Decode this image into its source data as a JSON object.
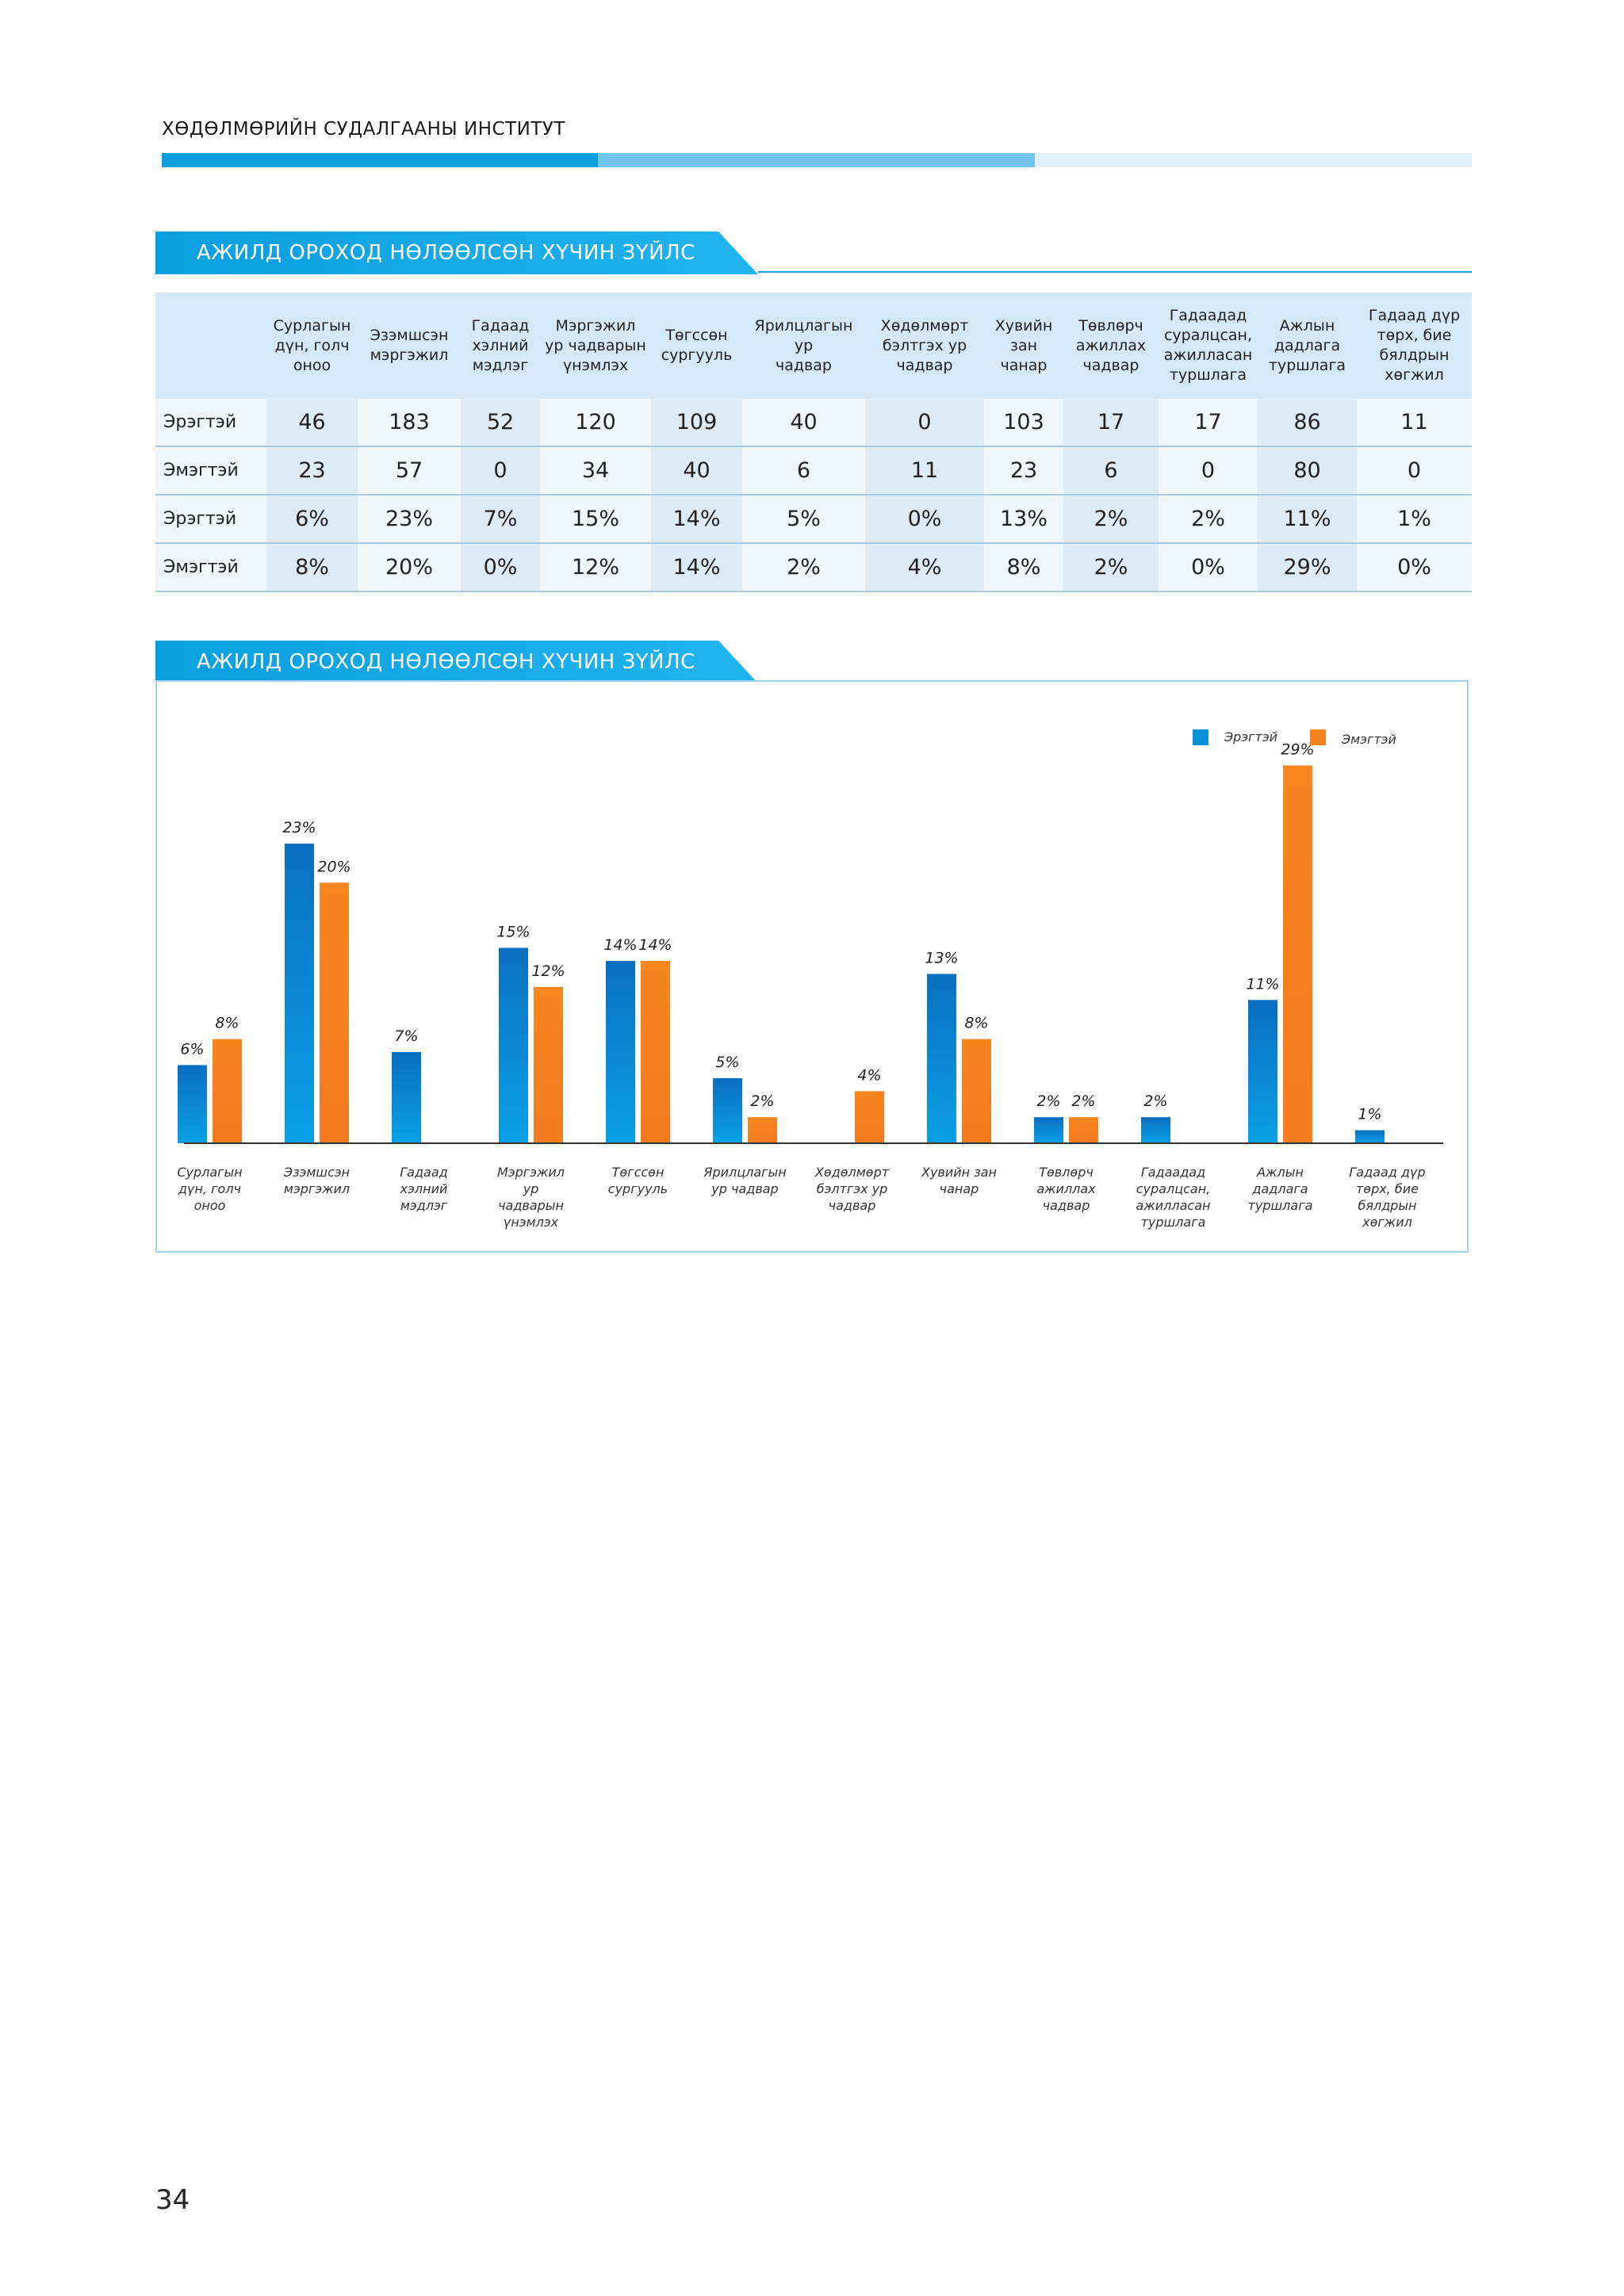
{
  "header": {
    "institute": "ХӨДӨЛМӨРИЙН СУДАЛГААНЫ ИНСТИТУТ"
  },
  "table_section": {
    "title": "АЖИЛД ОРОХОД НӨЛӨӨЛСӨН ХҮЧИН ЗҮЙЛС",
    "columns": [
      [
        "Сурлагын",
        "дүн, голч",
        "оноо"
      ],
      [
        "Эзэмшсэн",
        "мэргэжил"
      ],
      [
        "Гадаад",
        "хэлний",
        "мэдлэг"
      ],
      [
        "Мэргэжил",
        "ур чадварын",
        "үнэмлэх"
      ],
      [
        "Төгссөн",
        "сургууль"
      ],
      [
        "Ярилцлагын ур",
        "чадвар"
      ],
      [
        "Хөдөлмөрт",
        "бэлтгэх ур",
        "чадвар"
      ],
      [
        "Хувийн",
        "зан чанар"
      ],
      [
        "Төвлөрч",
        "ажиллах",
        "чадвар"
      ],
      [
        "Гадаадад",
        "суралцсан,",
        "ажилласан",
        "туршлага"
      ],
      [
        "Ажлын",
        "дадлага",
        "туршлага"
      ],
      [
        "Гадаад дүр",
        "төрх, бие",
        "бялдрын",
        "хөгжил"
      ]
    ],
    "rows": [
      {
        "label": "Эрэгтэй",
        "values": [
          "46",
          "183",
          "52",
          "120",
          "109",
          "40",
          "0",
          "103",
          "17",
          "17",
          "86",
          "11"
        ]
      },
      {
        "label": "Эмэгтэй",
        "values": [
          "23",
          "57",
          "0",
          "34",
          "40",
          "6",
          "11",
          "23",
          "6",
          "0",
          "80",
          "0"
        ]
      },
      {
        "label": "Эрэгтэй",
        "values": [
          "6%",
          "23%",
          "7%",
          "15%",
          "14%",
          "5%",
          "0%",
          "13%",
          "2%",
          "2%",
          "11%",
          "1%"
        ]
      },
      {
        "label": "Эмэгтэй",
        "values": [
          "8%",
          "20%",
          "0%",
          "12%",
          "14%",
          "2%",
          "4%",
          "8%",
          "2%",
          "0%",
          "29%",
          "0%"
        ]
      }
    ]
  },
  "chart_section": {
    "title": "АЖИЛД ОРОХОД НӨЛӨӨЛСӨН ХҮЧИН ЗҮЙЛС"
  },
  "chart_data": {
    "type": "bar",
    "title": "АЖИЛД ОРОХОД НӨЛӨӨЛСӨН ХҮЧИН ЗҮЙЛС",
    "categories": [
      "Сурлагын дүн, голч оноо",
      "Эзэмшсэн мэргэжил",
      "Гадаад хэлний мэдлэг",
      "Мэргэжил ур чадварын үнэмлэх",
      "Төгссөн сургууль",
      "Ярилцлагын ур чадвар",
      "Хөдөлмөрт бэлтгэх ур чадвар",
      "Хувийн зан чанар",
      "Төвлөрч ажиллах чадвар",
      "Гадаадад суралцсан, ажилласан туршлага",
      "Ажлын дадлага туршлага",
      "Гадаад дүр төрх, бие бялдрын хөгжил"
    ],
    "category_lines": [
      [
        "Сурлагын",
        "дүн, голч",
        "оноо"
      ],
      [
        "Эзэмшсэн",
        "мэргэжил"
      ],
      [
        "Гадаад",
        "хэлний",
        "мэдлэг"
      ],
      [
        "Мэргэжил",
        "ур",
        "чадварын",
        "үнэмлэх"
      ],
      [
        "Төгссөн",
        "сургууль"
      ],
      [
        "Ярилцлагын",
        "ур чадвар"
      ],
      [
        "Хөдөлмөрт",
        "бэлтгэх ур",
        "чадвар"
      ],
      [
        "Хувийн зан",
        "чанар"
      ],
      [
        "Төвлөрч",
        "ажиллах",
        "чадвар"
      ],
      [
        "Гадаадад",
        "суралцсан,",
        "ажилласан",
        "туршлага"
      ],
      [
        "Ажлын",
        "дадлага",
        "туршлага"
      ],
      [
        "Гадаад дүр",
        "төрх, бие",
        "бялдрын",
        "хөгжил"
      ]
    ],
    "series": [
      {
        "name": "Эрэгтэй",
        "color": "#0a90d8",
        "values": [
          6,
          23,
          7,
          15,
          14,
          5,
          0,
          13,
          2,
          2,
          11,
          1
        ]
      },
      {
        "name": "Эмэгтэй",
        "color": "#f5821f",
        "values": [
          8,
          20,
          0,
          12,
          14,
          2,
          4,
          8,
          2,
          0,
          29,
          0
        ]
      }
    ],
    "ylim": [
      0,
      30
    ],
    "value_suffix": "%",
    "legend": "top-right",
    "grid": false,
    "xlabel": "",
    "ylabel": ""
  },
  "footer": {
    "page_number": "34"
  }
}
